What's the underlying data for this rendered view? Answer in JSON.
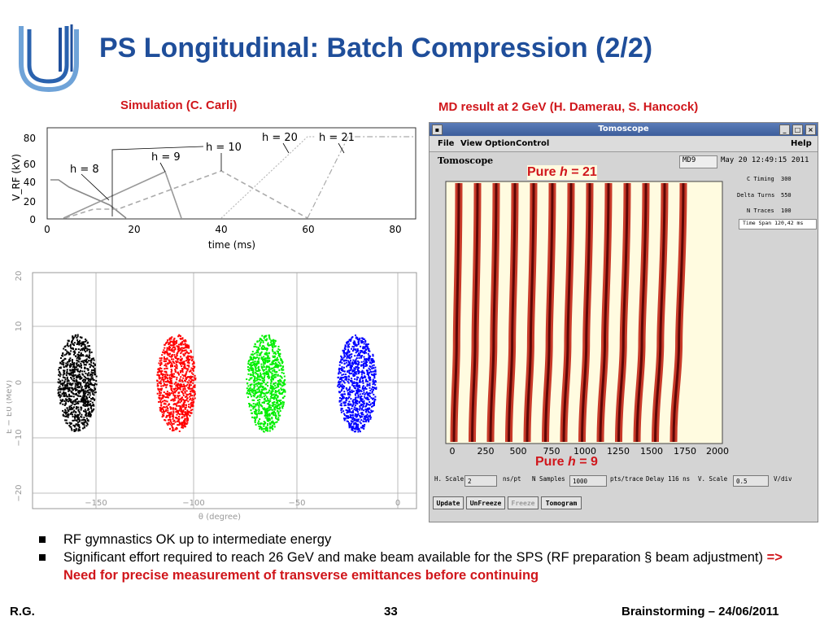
{
  "slide": {
    "title": "PS Longitudinal: Batch Compression (2/2)",
    "sim_caption": "Simulation (C. Carli)",
    "md_caption": "MD result at 2 GeV (H. Damerau, S. Hancock)",
    "bullets": [
      {
        "text": "RF gymnastics OK up to intermediate energy",
        "highlight": ""
      },
      {
        "text": "Significant effort required to reach 26 GeV and make beam available for the SPS (RF preparation § beam adjustment) ",
        "highlight": "=> Need for precise measurement of transverse emittances before continuing"
      }
    ],
    "footer_left": "R.G.",
    "footer_page": "33",
    "footer_right": "Brainstorming – 24/06/2011",
    "colors": {
      "title": "#1f4e9a",
      "accent_red": "#d0161b"
    }
  },
  "vrf_plot": {
    "ylabel": "V_RF (kV)",
    "xlabel": "time (ms)",
    "xticks": [
      "0",
      "20",
      "40",
      "60",
      "80"
    ],
    "yticks": [
      "0",
      "20",
      "40",
      "60",
      "80"
    ],
    "annotations": [
      "h = 8",
      "h = 9",
      "h = 10",
      "h = 20",
      "h = 21"
    ]
  },
  "phase_plot": {
    "ylabel": "E − E0 (MeV)",
    "xlabel": "θ (degree)",
    "xticks": [
      "−150",
      "−100",
      "−50",
      "0"
    ],
    "yticks": [
      "20",
      "10",
      "0",
      "−10",
      "−20"
    ],
    "bunch_colors": [
      "#000000",
      "#ff0000",
      "#00ee00",
      "#0000ff"
    ]
  },
  "tomoscope": {
    "window_title": "Tomoscope",
    "menu": [
      "File",
      "View",
      "Option",
      "Control"
    ],
    "help": "Help",
    "toolbar_label": "Tomoscope",
    "user_field": "MD9",
    "datetime": "May 20 12:49:15 2011",
    "c_timing_label": "C Timing",
    "c_timing": "300",
    "delta_turns_label": "Delta Turns",
    "delta_turns": "550",
    "n_traces_label": "N Traces",
    "n_traces": "100",
    "time_span": "Time Span 120,42 ms",
    "xticks": [
      "0",
      "250",
      "500",
      "750",
      "1000",
      "1250",
      "1500",
      "1750",
      "2000"
    ],
    "pure_top_prefix": "Pure ",
    "pure_top_h": "h",
    "pure_top_suffix": " = 21",
    "pure_bottom_prefix": "Pure ",
    "pure_bottom_h": "h",
    "pure_bottom_suffix": " = 9",
    "h_scale_label": "H. Scale",
    "h_scale": "2",
    "h_scale_unit": "ns/pt",
    "n_samples_label": "N Samples",
    "n_samples": "1000",
    "n_samples_unit": "pts/trace",
    "delay": "Delay  116 ns",
    "v_scale_label": "V. Scale",
    "v_scale": "0.5",
    "v_scale_unit": "V/div",
    "buttons": [
      "Update",
      "UnFreeze",
      "Freeze",
      "Tomogram"
    ]
  }
}
